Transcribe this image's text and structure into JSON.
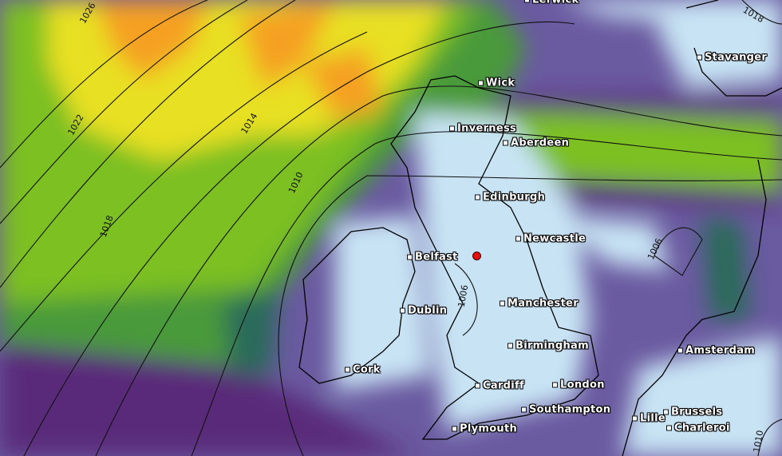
{
  "map": {
    "cities": [
      {
        "name": "Lerwick",
        "id": "lerwick"
      },
      {
        "name": "Wick",
        "id": "wick"
      },
      {
        "name": "Inverness",
        "id": "inverness"
      },
      {
        "name": "Aberdeen",
        "id": "aberdeen"
      },
      {
        "name": "Edinburgh",
        "id": "edinburgh"
      },
      {
        "name": "Newcastle",
        "id": "newcastle"
      },
      {
        "name": "Belfast",
        "id": "belfast"
      },
      {
        "name": "Dublin",
        "id": "dublin"
      },
      {
        "name": "Manchester",
        "id": "manchester"
      },
      {
        "name": "Birmingham",
        "id": "birmingham"
      },
      {
        "name": "Cork",
        "id": "cork"
      },
      {
        "name": "Cardiff",
        "id": "cardiff"
      },
      {
        "name": "London",
        "id": "london"
      },
      {
        "name": "Southampton",
        "id": "southampton"
      },
      {
        "name": "Plymouth",
        "id": "plymouth"
      },
      {
        "name": "Lille",
        "id": "lille"
      },
      {
        "name": "Brussels",
        "id": "brussels"
      },
      {
        "name": "Charleroi",
        "id": "charleroi"
      },
      {
        "name": "Amsterdam",
        "id": "amsterdam"
      },
      {
        "name": "Stavanger",
        "id": "stavanger"
      }
    ],
    "isobar_labels": [
      "1026",
      "1022",
      "1018",
      "1014",
      "1010",
      "1006",
      "1006",
      "1018",
      "1010"
    ],
    "marker_color": "#e01010",
    "colors": {
      "high": "#f5a020",
      "mid": "#e8e020",
      "green": "#7cc020",
      "teal": "#2a6a5a",
      "purple": "#5a2a7a",
      "lavender": "#6a5aa0",
      "pale": "#c8e4f4"
    }
  }
}
